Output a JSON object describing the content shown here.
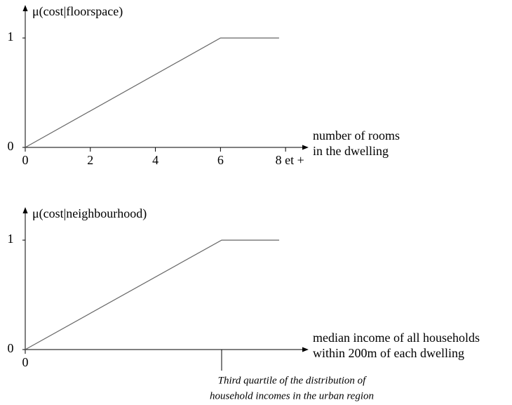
{
  "chart_data": [
    {
      "type": "line",
      "y_label": "μ(cost|floorspace)",
      "x_label": [
        "number of rooms",
        "in the dwelling"
      ],
      "x": [
        0,
        6,
        7.8
      ],
      "values": [
        0,
        1,
        1
      ],
      "color": "#666666",
      "xlim": [
        0,
        8.6
      ],
      "ylim": [
        0,
        1.27
      ],
      "xticks": [
        0,
        2,
        4,
        6,
        {
          "value": 8,
          "label": "8 et +"
        }
      ],
      "yticks": [
        0,
        1
      ]
    },
    {
      "type": "line",
      "y_label": "μ(cost|neighbourhood)",
      "x_label": [
        "median income of all households",
        "within 200m of each dwelling"
      ],
      "x": [
        0,
        1,
        1.293
      ],
      "values": [
        0,
        1,
        1
      ],
      "color": "#666666",
      "xlim": [
        0,
        1.425
      ],
      "ylim": [
        0,
        1.27
      ],
      "xticks": [
        0,
        {
          "value": 1,
          "label": [
            "Third quartile of the distribution of",
            "household incomes in the urban region"
          ]
        }
      ],
      "yticks": [
        0,
        1
      ]
    }
  ]
}
